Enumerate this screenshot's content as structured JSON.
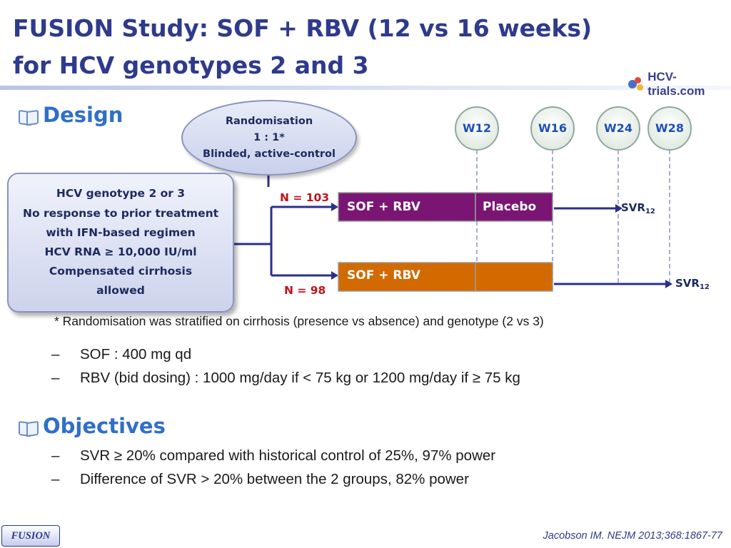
{
  "title": {
    "line1": "FUSION Study: SOF + RBV (12 vs 16 weeks)",
    "line2": "for HCV genotypes 2 and 3"
  },
  "logo": {
    "text": "HCV-trials.com",
    "icon": "hcv-trials-logo-icon"
  },
  "design": {
    "heading": "Design",
    "randomisation": [
      "Randomisation",
      "1 : 1*",
      "Blinded, active-control"
    ],
    "criteria": [
      "HCV genotype 2 or 3",
      "No response to prior treatment",
      "with IFN-based regimen",
      "HCV RNA ≥ 10,000 IU/ml",
      "Compensated cirrhosis",
      "allowed"
    ],
    "weeks": [
      "W12",
      "W16",
      "W24",
      "W28"
    ],
    "arms": [
      {
        "n": "N = 103",
        "seg1": "SOF + RBV",
        "seg2": "Placebo",
        "color1": "#7a1574",
        "color2": "#7a1574",
        "svr": "SVR",
        "svr_sub": "12"
      },
      {
        "n": "N = 98",
        "seg1": "SOF + RBV",
        "seg2": "",
        "color1": "#d26a00",
        "color2": "#d26a00",
        "svr": "SVR",
        "svr_sub": "12"
      }
    ],
    "footnote": "* Randomisation was stratified on cirrhosis (presence vs absence) and genotype (2 vs 3)",
    "dosing": [
      "SOF : 400 mg qd",
      "RBV (bid dosing) : 1000 mg/day if < 75 kg or 1200 mg/day if ≥ 75 kg"
    ]
  },
  "objectives": {
    "heading": "Objectives",
    "items": [
      "SVR ≥ 20% compared with historical control of 25%, 97% power",
      "Difference of SVR > 20% between the 2 groups, 82% power"
    ]
  },
  "footer": {
    "tag": "FUSION",
    "reference": "Jacobson IM. NEJM 2013;368:1867-77"
  }
}
